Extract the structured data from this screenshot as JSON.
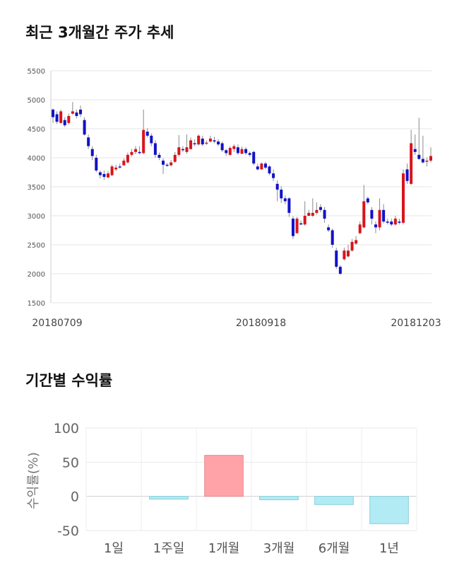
{
  "page": {
    "title1": "최근 3개월간 주가 추세",
    "title2": "기간별 수익률"
  },
  "chart_data": [
    {
      "type": "candlestick",
      "title": "최근 3개월간 주가 추세",
      "ylim": [
        1500,
        5500
      ],
      "yticks": [
        1500,
        2000,
        2500,
        3000,
        3500,
        4000,
        4500,
        5000,
        5500
      ],
      "xtick_labels": [
        "20180709",
        "20180918",
        "20181203"
      ],
      "grid": true,
      "up_color": "#d9141b",
      "down_color": "#1212c8",
      "candles": [
        [
          4830,
          4700,
          4850,
          4600
        ],
        [
          4750,
          4620,
          4800,
          4580
        ],
        [
          4600,
          4800,
          4830,
          4590
        ],
        [
          4650,
          4560,
          4700,
          4530
        ],
        [
          4600,
          4720,
          4760,
          4570
        ],
        [
          4760,
          4800,
          4960,
          4740
        ],
        [
          4780,
          4720,
          4830,
          4680
        ],
        [
          4830,
          4750,
          4900,
          4700
        ],
        [
          4650,
          4400,
          4700,
          4380
        ],
        [
          4350,
          4200,
          4400,
          4150
        ],
        [
          4150,
          4030,
          4200,
          3960
        ],
        [
          4000,
          3780,
          4050,
          3750
        ],
        [
          3750,
          3700,
          3780,
          3640
        ],
        [
          3720,
          3670,
          3780,
          3620
        ],
        [
          3660,
          3730,
          3770,
          3650
        ],
        [
          3700,
          3850,
          3880,
          3680
        ],
        [
          3800,
          3830,
          3880,
          3770
        ],
        [
          3850,
          3840,
          3900,
          3810
        ],
        [
          3870,
          3950,
          3990,
          3860
        ],
        [
          3920,
          4050,
          4090,
          3900
        ],
        [
          4050,
          4100,
          4150,
          4020
        ],
        [
          4100,
          4150,
          4200,
          4060
        ],
        [
          4100,
          4080,
          4200,
          4060
        ],
        [
          4080,
          4480,
          4830,
          4060
        ],
        [
          4450,
          4380,
          4510,
          4350
        ],
        [
          4380,
          4250,
          4420,
          4200
        ],
        [
          4250,
          4050,
          4300,
          4000
        ],
        [
          4050,
          4000,
          4090,
          3960
        ],
        [
          3950,
          3880,
          3990,
          3720
        ],
        [
          3880,
          3870,
          3910,
          3840
        ],
        [
          3870,
          3920,
          3960,
          3850
        ],
        [
          3930,
          4050,
          4100,
          3910
        ],
        [
          4050,
          4180,
          4390,
          4020
        ],
        [
          4150,
          4130,
          4200,
          4100
        ],
        [
          4100,
          4180,
          4400,
          4070
        ],
        [
          4150,
          4300,
          4350,
          4140
        ],
        [
          4250,
          4240,
          4320,
          4200
        ],
        [
          4230,
          4380,
          4400,
          4210
        ],
        [
          4330,
          4230,
          4380,
          4200
        ],
        [
          4250,
          4260,
          4300,
          4220
        ],
        [
          4280,
          4330,
          4380,
          4260
        ],
        [
          4300,
          4280,
          4360,
          4250
        ],
        [
          4280,
          4230,
          4320,
          4200
        ],
        [
          4250,
          4130,
          4280,
          4100
        ],
        [
          4130,
          4080,
          4150,
          4030
        ],
        [
          4050,
          4170,
          4200,
          4030
        ],
        [
          4150,
          4200,
          4230,
          4100
        ],
        [
          4180,
          4080,
          4230,
          4050
        ],
        [
          4070,
          4150,
          4190,
          4060
        ],
        [
          4150,
          4080,
          4180,
          4050
        ],
        [
          4080,
          4050,
          4110,
          4020
        ],
        [
          4100,
          3900,
          4120,
          3870
        ],
        [
          3850,
          3800,
          3900,
          3780
        ],
        [
          3800,
          3900,
          3920,
          3790
        ],
        [
          3900,
          3830,
          3930,
          3800
        ],
        [
          3850,
          3730,
          3870,
          3700
        ],
        [
          3730,
          3650,
          3800,
          3600
        ],
        [
          3550,
          3450,
          3610,
          3250
        ],
        [
          3450,
          3300,
          3510,
          3220
        ],
        [
          3300,
          3250,
          3350,
          3200
        ],
        [
          3300,
          3050,
          3320,
          2980
        ],
        [
          2950,
          2650,
          2990,
          2600
        ],
        [
          2700,
          2950,
          2980,
          2690
        ],
        [
          2870,
          2850,
          2920,
          2840
        ],
        [
          2850,
          3000,
          3250,
          2830
        ],
        [
          3000,
          3050,
          3100,
          2990
        ],
        [
          3000,
          3050,
          3300,
          2980
        ],
        [
          3050,
          3100,
          3230,
          3020
        ],
        [
          3150,
          3100,
          3200,
          3060
        ],
        [
          3100,
          2950,
          3150,
          2880
        ],
        [
          2800,
          2750,
          2850,
          2720
        ],
        [
          2750,
          2500,
          2780,
          2450
        ],
        [
          2400,
          2120,
          2450,
          2080
        ],
        [
          2120,
          2000,
          2150,
          1980
        ],
        [
          2250,
          2400,
          2450,
          2230
        ],
        [
          2300,
          2400,
          2500,
          2280
        ],
        [
          2400,
          2550,
          2600,
          2380
        ],
        [
          2520,
          2580,
          2650,
          2500
        ],
        [
          2700,
          2850,
          2900,
          2680
        ],
        [
          2800,
          3250,
          3530,
          2780
        ],
        [
          3300,
          3230,
          3330,
          3200
        ],
        [
          3100,
          2950,
          3150,
          2850
        ],
        [
          2850,
          2800,
          2900,
          2700
        ],
        [
          2800,
          3100,
          3300,
          2750
        ],
        [
          3100,
          2900,
          3200,
          2870
        ],
        [
          2900,
          2880,
          2950,
          2850
        ],
        [
          2900,
          2850,
          2950,
          2820
        ],
        [
          2850,
          2950,
          3000,
          2830
        ],
        [
          2900,
          2880,
          2950,
          2850
        ],
        [
          2880,
          3730,
          3800,
          2850
        ],
        [
          3800,
          3600,
          3900,
          3550
        ],
        [
          3550,
          4250,
          4480,
          3530
        ],
        [
          4150,
          4100,
          4400,
          4050
        ],
        [
          4050,
          3980,
          4690,
          3960
        ],
        [
          3980,
          3920,
          4380,
          3900
        ],
        [
          3950,
          3950,
          4000,
          3850
        ],
        [
          3950,
          4030,
          4180,
          3920
        ]
      ]
    },
    {
      "type": "bar",
      "title": "기간별 수익률",
      "ylabel": "수익률(%)",
      "categories": [
        "1일",
        "1주일",
        "1개월",
        "3개월",
        "6개월",
        "1년"
      ],
      "values": [
        0,
        -4,
        60,
        -5,
        -12,
        -40
      ],
      "ylim": [
        -50,
        100
      ],
      "yticks": [
        -50,
        0,
        50,
        100
      ],
      "grid": true,
      "positive_color": "#ffa3a8",
      "negative_color": "#b3ebf4"
    }
  ]
}
